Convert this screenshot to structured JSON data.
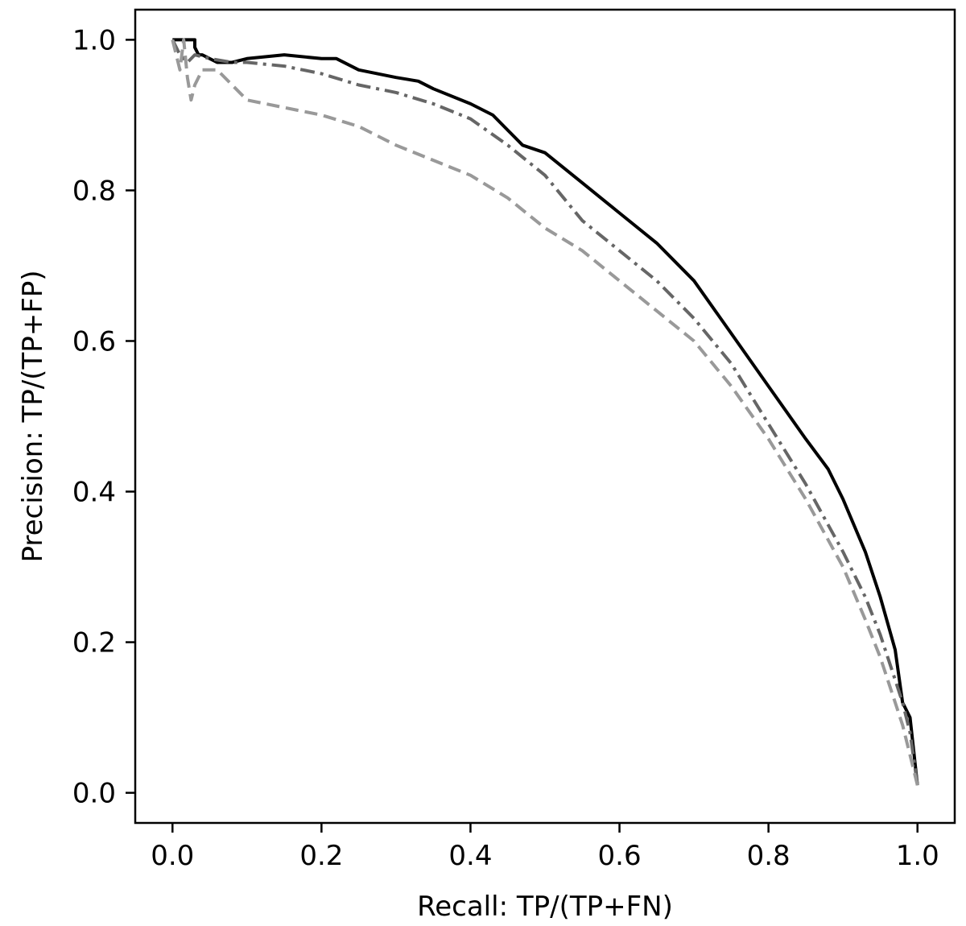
{
  "chart_data": {
    "type": "line",
    "title": "",
    "xlabel": "Recall: TP/(TP+FN)",
    "ylabel": "Precision: TP/(TP+FP)",
    "xlim": [
      -0.05,
      1.05
    ],
    "ylim": [
      -0.04,
      1.04
    ],
    "xticks": [
      "0.0",
      "0.2",
      "0.4",
      "0.6",
      "0.8",
      "1.0"
    ],
    "yticks": [
      "0.0",
      "0.2",
      "0.4",
      "0.6",
      "0.8",
      "1.0"
    ],
    "grid": false,
    "legend": "none",
    "series": [
      {
        "style": "solid",
        "color": "#000000",
        "x": [
          0.0,
          0.03,
          0.03,
          0.035,
          0.04,
          0.06,
          0.08,
          0.1,
          0.15,
          0.2,
          0.22,
          0.25,
          0.3,
          0.33,
          0.35,
          0.4,
          0.43,
          0.45,
          0.47,
          0.5,
          0.55,
          0.6,
          0.65,
          0.7,
          0.75,
          0.8,
          0.85,
          0.88,
          0.9,
          0.93,
          0.95,
          0.97,
          0.98,
          0.99,
          1.0
        ],
        "y": [
          1.0,
          1.0,
          0.99,
          0.98,
          0.98,
          0.97,
          0.97,
          0.975,
          0.98,
          0.975,
          0.975,
          0.96,
          0.95,
          0.945,
          0.935,
          0.915,
          0.9,
          0.88,
          0.86,
          0.85,
          0.81,
          0.77,
          0.73,
          0.68,
          0.61,
          0.54,
          0.47,
          0.43,
          0.39,
          0.32,
          0.26,
          0.19,
          0.12,
          0.1,
          0.01
        ]
      },
      {
        "style": "dashdot",
        "color": "#666666",
        "x": [
          0.0,
          0.01,
          0.02,
          0.03,
          0.05,
          0.08,
          0.1,
          0.15,
          0.2,
          0.25,
          0.3,
          0.35,
          0.4,
          0.45,
          0.5,
          0.55,
          0.6,
          0.65,
          0.7,
          0.75,
          0.8,
          0.85,
          0.9,
          0.93,
          0.95,
          0.97,
          0.98,
          0.99,
          1.0
        ],
        "y": [
          1.0,
          0.98,
          0.97,
          0.98,
          0.975,
          0.97,
          0.97,
          0.965,
          0.955,
          0.94,
          0.93,
          0.915,
          0.895,
          0.86,
          0.82,
          0.76,
          0.72,
          0.68,
          0.63,
          0.57,
          0.49,
          0.41,
          0.32,
          0.26,
          0.21,
          0.15,
          0.12,
          0.08,
          0.01
        ]
      },
      {
        "style": "dashed",
        "color": "#999999",
        "x": [
          0.0,
          0.01,
          0.015,
          0.02,
          0.025,
          0.03,
          0.04,
          0.06,
          0.08,
          0.1,
          0.15,
          0.2,
          0.25,
          0.3,
          0.35,
          0.4,
          0.45,
          0.5,
          0.55,
          0.6,
          0.65,
          0.7,
          0.75,
          0.8,
          0.85,
          0.9,
          0.93,
          0.95,
          0.97,
          0.98,
          0.99,
          1.0
        ],
        "y": [
          1.0,
          0.96,
          1.0,
          0.95,
          0.92,
          0.94,
          0.96,
          0.96,
          0.94,
          0.92,
          0.91,
          0.9,
          0.885,
          0.86,
          0.84,
          0.82,
          0.79,
          0.75,
          0.72,
          0.68,
          0.64,
          0.6,
          0.54,
          0.47,
          0.39,
          0.3,
          0.23,
          0.18,
          0.12,
          0.09,
          0.05,
          0.01
        ]
      }
    ]
  }
}
